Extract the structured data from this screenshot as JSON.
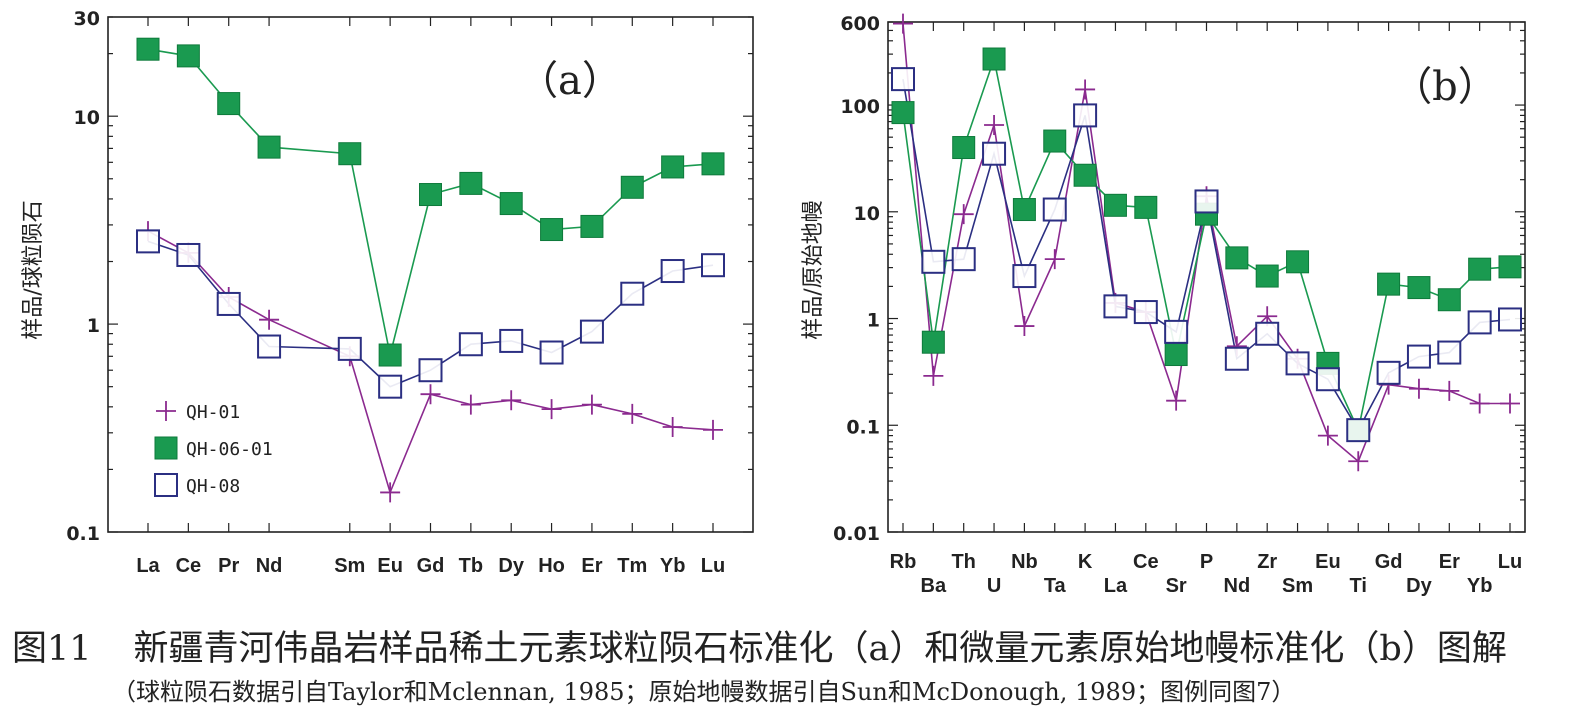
{
  "caption": {
    "figure_no": "图11",
    "title": "新疆青河伟晶岩样品稀土元素球粒陨石标准化（a）和微量元素原始地幔标准化（b）图解",
    "note": "（球粒陨石数据引自Taylor和Mclennan, 1985；原始地幔数据引自Sun和McDonough, 1989；图例同图7）"
  },
  "legend": [
    {
      "name": "QH-01",
      "marker": "plus",
      "color": "#8b2a8f"
    },
    {
      "name": "QH-06-01",
      "marker": "filled-square",
      "color": "#1a9a50"
    },
    {
      "name": "QH-08",
      "marker": "open-square",
      "color": "#2b2f82"
    }
  ],
  "chart_data": [
    {
      "type": "line",
      "panel_label": "（a）",
      "y_scale": "log",
      "ylabel": "样品/球粒陨石",
      "ylim": [
        0.1,
        30
      ],
      "y_ticks": [
        {
          "value": 0.1,
          "label": "0.1"
        },
        {
          "value": 1,
          "label": "1"
        },
        {
          "value": 10,
          "label": "10"
        },
        {
          "value": 30,
          "label": "30"
        }
      ],
      "categories": [
        "La",
        "Ce",
        "Pr",
        "Nd",
        "Sm",
        "Eu",
        "Gd",
        "Tb",
        "Dy",
        "Ho",
        "Er",
        "Tm",
        "Yb",
        "Lu"
      ],
      "x_positions": [
        0,
        1,
        2,
        3,
        5,
        6,
        7,
        8,
        9,
        10,
        11,
        12,
        13,
        14
      ],
      "series": [
        {
          "name": "QH-01",
          "values": [
            2.8,
            2.2,
            1.35,
            1.05,
            0.7,
            0.155,
            0.46,
            0.41,
            0.43,
            0.39,
            0.41,
            0.37,
            0.32,
            0.31
          ]
        },
        {
          "name": "QH-06-01",
          "values": [
            21,
            19.5,
            11.5,
            7.1,
            6.6,
            0.71,
            4.2,
            4.75,
            3.8,
            2.85,
            2.95,
            4.55,
            5.7,
            5.9
          ]
        },
        {
          "name": "QH-08",
          "values": [
            2.5,
            2.15,
            1.25,
            0.78,
            0.76,
            0.5,
            0.6,
            0.8,
            0.83,
            0.73,
            0.92,
            1.4,
            1.8,
            1.92
          ]
        }
      ]
    },
    {
      "type": "line",
      "panel_label": "（b）",
      "y_scale": "log",
      "ylabel": "样品/原始地幔",
      "ylim": [
        0.01,
        600
      ],
      "y_ticks": [
        {
          "value": 0.01,
          "label": "0.01"
        },
        {
          "value": 0.1,
          "label": "0.1"
        },
        {
          "value": 1,
          "label": "1"
        },
        {
          "value": 10,
          "label": "10"
        },
        {
          "value": 100,
          "label": "100"
        },
        {
          "value": 600,
          "label": "600"
        }
      ],
      "categories": [
        "Rb",
        "Ba",
        "Th",
        "U",
        "Nb",
        "Ta",
        "K",
        "La",
        "Ce",
        "Sr",
        "P",
        "Nd",
        "Zr",
        "Sm",
        "Eu",
        "Ti",
        "Gd",
        "Dy",
        "Er",
        "Yb",
        "Lu"
      ],
      "series": [
        {
          "name": "QH-01",
          "values": [
            580,
            0.29,
            9.5,
            65,
            0.85,
            3.6,
            140,
            1.4,
            1.15,
            0.17,
            14,
            0.55,
            1.05,
            0.42,
            0.08,
            0.046,
            0.24,
            0.22,
            0.21,
            0.16,
            0.16
          ]
        },
        {
          "name": "QH-06-01",
          "values": [
            85,
            0.6,
            40,
            270,
            10.5,
            46,
            22,
            11.5,
            11,
            0.46,
            9.5,
            3.7,
            2.5,
            3.4,
            0.38,
            0.09,
            2.1,
            1.95,
            1.5,
            2.9,
            3.05
          ]
        },
        {
          "name": "QH-08",
          "values": [
            175,
            3.4,
            3.6,
            35,
            2.5,
            10.5,
            80,
            1.3,
            1.15,
            0.75,
            12.5,
            0.42,
            0.72,
            0.38,
            0.27,
            0.09,
            0.31,
            0.44,
            0.48,
            0.92,
            0.98
          ]
        }
      ]
    }
  ]
}
